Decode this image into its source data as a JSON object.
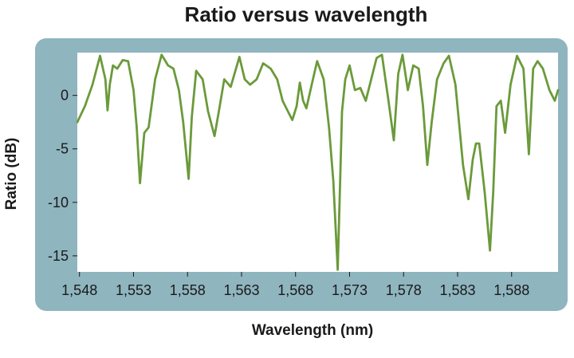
{
  "chart_data": {
    "type": "line",
    "title": "Ratio versus wavelength",
    "xlabel": "Wavelength (nm)",
    "ylabel": "Ratio (dB)",
    "xlim": [
      1547.8,
      1592.3
    ],
    "ylim": [
      -16.5,
      4
    ],
    "x_ticks": [
      1548,
      1553,
      1558,
      1563,
      1568,
      1573,
      1578,
      1583,
      1588
    ],
    "x_tick_labels": [
      "1,548",
      "1,553",
      "1,558",
      "1,563",
      "1,568",
      "1,573",
      "1,578",
      "1,583",
      "1,588"
    ],
    "y_ticks": [
      0,
      -5,
      -10,
      -15
    ],
    "y_tick_labels": [
      "0",
      "-5",
      "-10",
      "-15"
    ],
    "grid": false,
    "colors": {
      "line": "#6b9a3a",
      "frame": "#8fb5bf",
      "plot_bg": "#ffffff"
    },
    "series": [
      {
        "x": [
          1547.8,
          1548.5,
          1549.2,
          1549.9,
          1550.4,
          1550.6,
          1550.8,
          1551.1,
          1551.5,
          1552.0,
          1552.5,
          1553.0,
          1553.3,
          1553.6,
          1554.0,
          1554.4,
          1555.0,
          1555.6,
          1556.2,
          1556.7,
          1557.2,
          1557.6,
          1558.1,
          1558.4,
          1558.8,
          1559.4,
          1559.9,
          1560.5,
          1560.9,
          1561.4,
          1562.0,
          1562.8,
          1563.3,
          1563.8,
          1564.4,
          1565.0,
          1565.7,
          1566.3,
          1566.8,
          1567.3,
          1567.7,
          1568.1,
          1568.4,
          1568.7,
          1569.0,
          1569.5,
          1570.0,
          1570.6,
          1571.1,
          1571.5,
          1571.9,
          1572.1,
          1572.3,
          1572.6,
          1573.0,
          1573.5,
          1574.0,
          1574.5,
          1575.0,
          1575.5,
          1576.0,
          1576.6,
          1577.1,
          1577.5,
          1577.9,
          1578.4,
          1578.9,
          1579.4,
          1579.8,
          1580.2,
          1580.6,
          1581.1,
          1581.7,
          1582.2,
          1582.8,
          1583.5,
          1584.0,
          1584.4,
          1584.7,
          1585.0,
          1585.5,
          1586.0,
          1586.3,
          1586.6,
          1587.0,
          1587.4,
          1587.9,
          1588.5,
          1589.1,
          1589.6,
          1590.0,
          1590.4,
          1590.9,
          1591.5,
          1592.0,
          1592.3
        ],
        "y": [
          -2.5,
          -1.0,
          1.0,
          3.7,
          1.5,
          -1.4,
          1.0,
          2.8,
          2.5,
          3.3,
          3.2,
          0.5,
          -3.0,
          -8.2,
          -3.5,
          -3.0,
          1.5,
          3.8,
          2.8,
          2.5,
          0.5,
          -2.5,
          -7.8,
          -2.0,
          2.3,
          1.5,
          -1.5,
          -3.8,
          -1.5,
          1.5,
          0.8,
          3.6,
          1.5,
          1.0,
          1.5,
          3.0,
          2.5,
          1.5,
          -0.5,
          -1.5,
          -2.3,
          -1.0,
          1.2,
          -0.5,
          -1.2,
          1.0,
          3.2,
          1.5,
          -3.0,
          -8.0,
          -16.3,
          -9.0,
          -1.5,
          1.5,
          2.8,
          0.5,
          0.7,
          -0.5,
          1.5,
          3.5,
          3.8,
          -0.5,
          -4.2,
          2.0,
          3.8,
          0.5,
          2.8,
          2.5,
          -1.0,
          -6.5,
          -2.5,
          1.5,
          3.0,
          3.7,
          1.0,
          -6.5,
          -9.7,
          -6.0,
          -4.5,
          -4.5,
          -9.0,
          -14.5,
          -9.0,
          -1.0,
          -0.5,
          -3.5,
          1.0,
          3.7,
          2.5,
          -5.5,
          2.5,
          3.2,
          2.5,
          0.5,
          -0.5,
          0.5
        ]
      }
    ]
  }
}
